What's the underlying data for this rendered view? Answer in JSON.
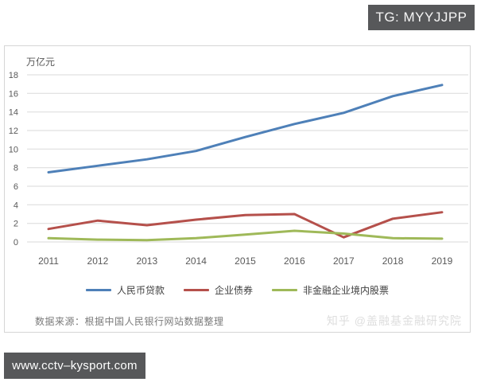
{
  "page": {
    "tg_label": "TG: MYYJJPP",
    "footer_url": "www.cctv–kysport.com",
    "source_note": "数据来源：根据中国人民银行网站数据整理",
    "watermark": "知乎 @盖融基金融研究院"
  },
  "colors": {
    "badge_bg": "#57585a",
    "grid": "#dadada",
    "panel_border": "#d6d6d6",
    "axis_text": "#595959"
  },
  "chart_data": {
    "type": "line",
    "unit_label": "万亿元",
    "x": [
      2011,
      2012,
      2013,
      2014,
      2015,
      2016,
      2017,
      2018,
      2019
    ],
    "series": [
      {
        "name": "人民币贷款",
        "color": "#4e80b8",
        "values": [
          7.5,
          8.2,
          8.9,
          9.8,
          11.3,
          12.7,
          13.9,
          15.7,
          16.9
        ]
      },
      {
        "name": "企业债券",
        "color": "#b5504b",
        "values": [
          1.4,
          2.3,
          1.8,
          2.4,
          2.9,
          3.0,
          0.5,
          2.5,
          3.2
        ]
      },
      {
        "name": "非金融企业境内股票",
        "color": "#9fb959",
        "values": [
          0.4,
          0.25,
          0.2,
          0.4,
          0.8,
          1.2,
          0.9,
          0.4,
          0.35
        ]
      }
    ],
    "ylim": [
      0,
      18
    ],
    "ytick_step": 2,
    "grid": true,
    "legend_position": "bottom",
    "source_note": "数据来源：根据中国人民银行网站数据整理"
  }
}
